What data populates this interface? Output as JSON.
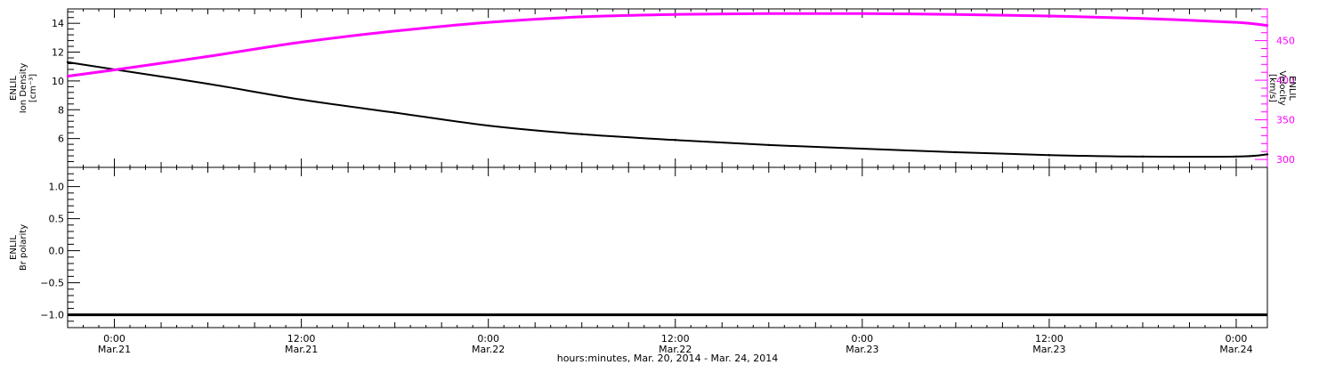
{
  "chart_data": [
    {
      "type": "line",
      "panel": "top",
      "ylabel_lines": [
        "ENLIL",
        "Ion Density",
        "[cm⁻³]"
      ],
      "ylabel_right_lines": [
        "ENLIL",
        "Velocity",
        "[km/s]"
      ],
      "ylim": [
        4.0,
        15.0
      ],
      "ylim_right": [
        290,
        490
      ],
      "yticks_left": [
        6,
        8,
        10,
        12,
        14
      ],
      "yticks_right": [
        300,
        350,
        400,
        450
      ],
      "right_axis_color": "#ff00ff",
      "series": [
        {
          "axis": "left",
          "color": "#000000",
          "x": [
            "2014-03-20T21:00",
            "2014-03-21T00:00",
            "2014-03-21T06:00",
            "2014-03-21T12:00",
            "2014-03-21T18:00",
            "2014-03-22T00:00",
            "2014-03-22T06:00",
            "2014-03-22T12:00",
            "2014-03-22T18:00",
            "2014-03-23T00:00",
            "2014-03-23T06:00",
            "2014-03-23T12:00",
            "2014-03-23T18:00",
            "2014-03-24T00:00",
            "2014-03-24T02:00"
          ],
          "values": [
            11.3,
            10.8,
            9.8,
            8.7,
            7.8,
            6.9,
            6.3,
            5.9,
            5.55,
            5.3,
            5.05,
            4.85,
            4.75,
            4.75,
            4.9
          ]
        },
        {
          "axis": "right",
          "color": "#ff00ff",
          "x": [
            "2014-03-20T21:00",
            "2014-03-21T00:00",
            "2014-03-21T06:00",
            "2014-03-21T12:00",
            "2014-03-21T18:00",
            "2014-03-22T00:00",
            "2014-03-22T06:00",
            "2014-03-22T12:00",
            "2014-03-22T18:00",
            "2014-03-23T00:00",
            "2014-03-23T06:00",
            "2014-03-23T12:00",
            "2014-03-23T18:00",
            "2014-03-24T00:00",
            "2014-03-24T02:00"
          ],
          "values": [
            405,
            413,
            430,
            448,
            462,
            473,
            480,
            483,
            484,
            484,
            483,
            481,
            478,
            473,
            469
          ]
        }
      ]
    },
    {
      "type": "line",
      "panel": "bottom",
      "ylabel_lines": [
        "ENLIL",
        "Br polarity"
      ],
      "ylim": [
        -1.2,
        1.3
      ],
      "yticks_left": [
        -1.0,
        -0.5,
        0.0,
        0.5,
        1.0
      ],
      "ytick_labels": [
        "−1.0",
        "−0.5",
        "0.0",
        "0.5",
        "1.0"
      ],
      "series": [
        {
          "axis": "left",
          "color": "#000000",
          "x": [
            "2014-03-20T21:00",
            "2014-03-24T02:00"
          ],
          "values": [
            -1.0,
            -1.0
          ]
        }
      ]
    }
  ],
  "xaxis": {
    "range": [
      "2014-03-20T21:00",
      "2014-03-24T02:00"
    ],
    "major_ticks": [
      {
        "time": "2014-03-21T00:00",
        "line1": "0:00",
        "line2": "Mar.21"
      },
      {
        "time": "2014-03-21T12:00",
        "line1": "12:00",
        "line2": "Mar.21"
      },
      {
        "time": "2014-03-22T00:00",
        "line1": "0:00",
        "line2": "Mar.22"
      },
      {
        "time": "2014-03-22T12:00",
        "line1": "12:00",
        "line2": "Mar.22"
      },
      {
        "time": "2014-03-23T00:00",
        "line1": "0:00",
        "line2": "Mar.23"
      },
      {
        "time": "2014-03-23T12:00",
        "line1": "12:00",
        "line2": "Mar.23"
      },
      {
        "time": "2014-03-24T00:00",
        "line1": "0:00",
        "line2": "Mar.24"
      }
    ],
    "title": "hours:minutes, Mar. 20, 2014 - Mar. 24, 2014"
  }
}
